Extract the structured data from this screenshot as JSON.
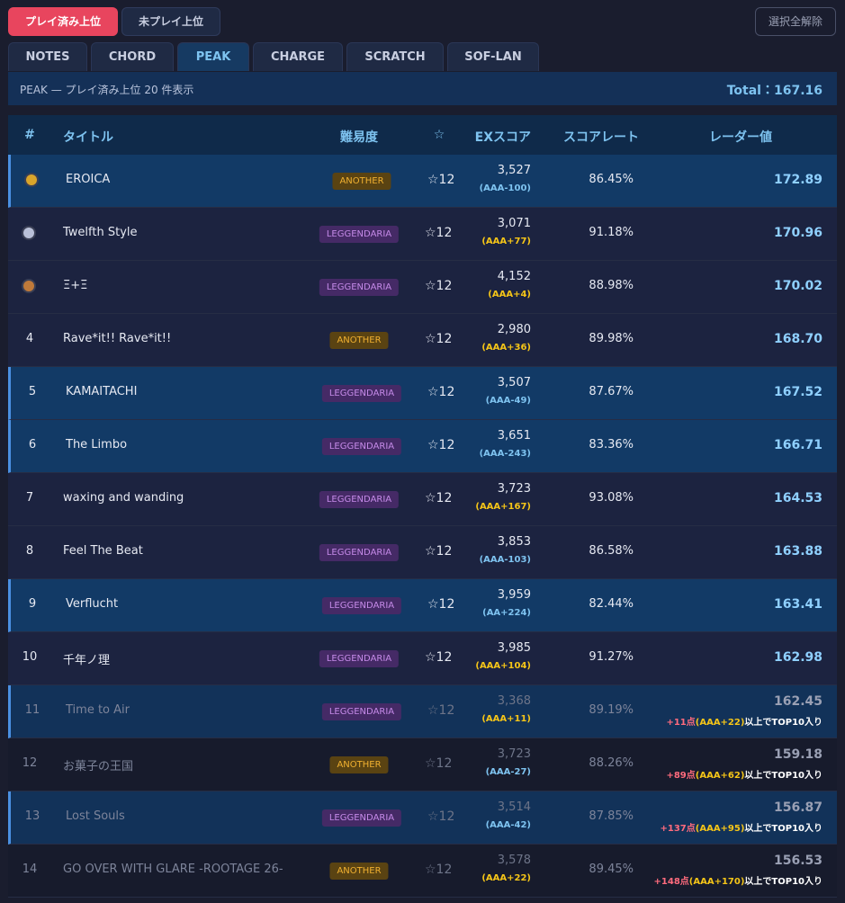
{
  "toggle": {
    "active": "プレイ済み上位",
    "inactive": "未プレイ上位"
  },
  "clear_button": "選択全解除",
  "tabs": {
    "items": [
      "NOTES",
      "CHORD",
      "PEAK",
      "CHARGE",
      "SCRATCH",
      "SOF-LAN"
    ],
    "active": "PEAK"
  },
  "summary": {
    "text": "PEAK — プレイ済み上位 20 件表示",
    "total": "Total：167.16"
  },
  "table": {
    "headers": [
      "#",
      "タイトル",
      "難易度",
      "☆",
      "EXスコア",
      "スコアレート",
      "レーダー値"
    ],
    "rows": [
      {
        "rank": null,
        "medal": "#d9a52b",
        "title": "EROICA",
        "difficulty": "ANOTHER",
        "level": "☆12",
        "score": "3,527",
        "grade": "(AAA-100)",
        "rate": "86.45%",
        "radar": "172.89",
        "selected": true
      },
      {
        "rank": null,
        "medal": "#b9c0d8",
        "title": "Twelfth Style",
        "difficulty": "LEGGENDARIA",
        "level": "☆12",
        "score": "3,071",
        "grade": "(AAA+77)",
        "rate": "91.18%",
        "radar": "170.96",
        "selected": false
      },
      {
        "rank": null,
        "medal": "#c07a3a",
        "title": "Ξ+Ξ",
        "difficulty": "LEGGENDARIA",
        "level": "☆12",
        "score": "4,152",
        "grade": "(AAA+4)",
        "rate": "88.98%",
        "radar": "170.02",
        "selected": false
      },
      {
        "rank": "4",
        "title": "Rave*it!! Rave*it!!",
        "difficulty": "ANOTHER",
        "level": "☆12",
        "score": "2,980",
        "grade": "(AAA+36)",
        "rate": "89.98%",
        "radar": "168.70",
        "selected": false
      },
      {
        "rank": "5",
        "title": "KAMAITACHI",
        "difficulty": "LEGGENDARIA",
        "level": "☆12",
        "score": "3,507",
        "grade": "(AAA-49)",
        "rate": "87.67%",
        "radar": "167.52",
        "selected": true
      },
      {
        "rank": "6",
        "title": "The Limbo",
        "difficulty": "LEGGENDARIA",
        "level": "☆12",
        "score": "3,651",
        "grade": "(AAA-243)",
        "rate": "83.36%",
        "radar": "166.71",
        "selected": true
      },
      {
        "rank": "7",
        "title": "waxing and wanding",
        "difficulty": "LEGGENDARIA",
        "level": "☆12",
        "score": "3,723",
        "grade": "(AAA+167)",
        "rate": "93.08%",
        "radar": "164.53",
        "selected": false
      },
      {
        "rank": "8",
        "title": "Feel The Beat",
        "difficulty": "LEGGENDARIA",
        "level": "☆12",
        "score": "3,853",
        "grade": "(AAA-103)",
        "rate": "86.58%",
        "radar": "163.88",
        "selected": false
      },
      {
        "rank": "9",
        "title": "Verflucht",
        "difficulty": "LEGGENDARIA",
        "level": "☆12",
        "score": "3,959",
        "grade": "(AA+224)",
        "rate": "82.44%",
        "radar": "163.41",
        "selected": true
      },
      {
        "rank": "10",
        "title": "千年ノ理",
        "difficulty": "LEGGENDARIA",
        "level": "☆12",
        "score": "3,985",
        "grade": "(AAA+104)",
        "rate": "91.27%",
        "radar": "162.98",
        "selected": false
      },
      {
        "rank": "11",
        "title": "Time to Air",
        "difficulty": "LEGGENDARIA",
        "level": "☆12",
        "score": "3,368",
        "grade": "(AAA+11)",
        "rate": "89.19%",
        "radar": "162.45",
        "selected": true,
        "note": [
          "+11点",
          "(AAA+22)",
          "以上でTOP10入り"
        ]
      },
      {
        "rank": "12",
        "title": "お菓子の王国",
        "difficulty": "ANOTHER",
        "level": "☆12",
        "score": "3,723",
        "grade": "(AAA-27)",
        "rate": "88.26%",
        "radar": "159.18",
        "selected": false,
        "note": [
          "+89点",
          "(AAA+62)",
          "以上でTOP10入り"
        ]
      },
      {
        "rank": "13",
        "title": "Lost Souls",
        "difficulty": "LEGGENDARIA",
        "level": "☆12",
        "score": "3,514",
        "grade": "(AAA-42)",
        "rate": "87.85%",
        "radar": "156.87",
        "selected": true,
        "note": [
          "+137点",
          "(AAA+95)",
          "以上でTOP10入り"
        ]
      },
      {
        "rank": "14",
        "title": "GO OVER WITH GLARE -ROOTAGE 26-",
        "difficulty": "ANOTHER",
        "level": "☆12",
        "score": "3,578",
        "grade": "(AAA+22)",
        "rate": "89.45%",
        "radar": "156.53",
        "selected": false,
        "note": [
          "+148点",
          "(AAA+170)",
          "以上でTOP10入り"
        ]
      }
    ]
  }
}
